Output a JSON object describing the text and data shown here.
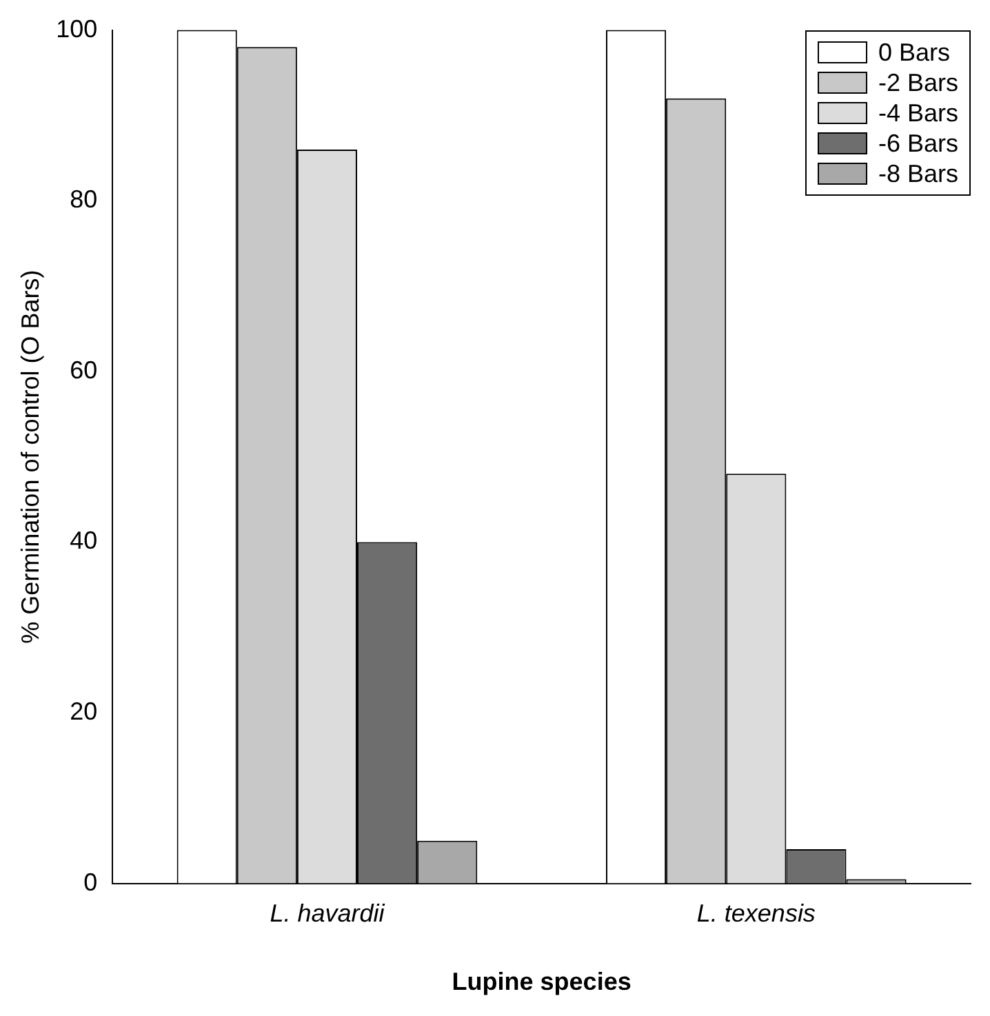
{
  "chart_data": {
    "type": "bar",
    "xlabel": "Lupine species",
    "ylabel": "% Germination of control (O Bars)",
    "categories": [
      "L. havardii",
      "L. texensis"
    ],
    "series": [
      {
        "name": "0 Bars",
        "color": "#ffffff",
        "values": [
          100,
          100
        ]
      },
      {
        "name": "-2 Bars",
        "color": "#c8c8c8",
        "values": [
          98,
          92
        ]
      },
      {
        "name": "-4 Bars",
        "color": "#dcdcdc",
        "values": [
          86,
          48
        ]
      },
      {
        "name": "-6 Bars",
        "color": "#6e6e6e",
        "values": [
          40,
          4
        ]
      },
      {
        "name": "-8 Bars",
        "color": "#a8a8a8",
        "values": [
          5,
          0.5
        ]
      }
    ],
    "ylim": [
      0,
      100
    ],
    "yticks": [
      0,
      20,
      40,
      60,
      80,
      100
    ],
    "grid": false,
    "legend": "top right"
  }
}
